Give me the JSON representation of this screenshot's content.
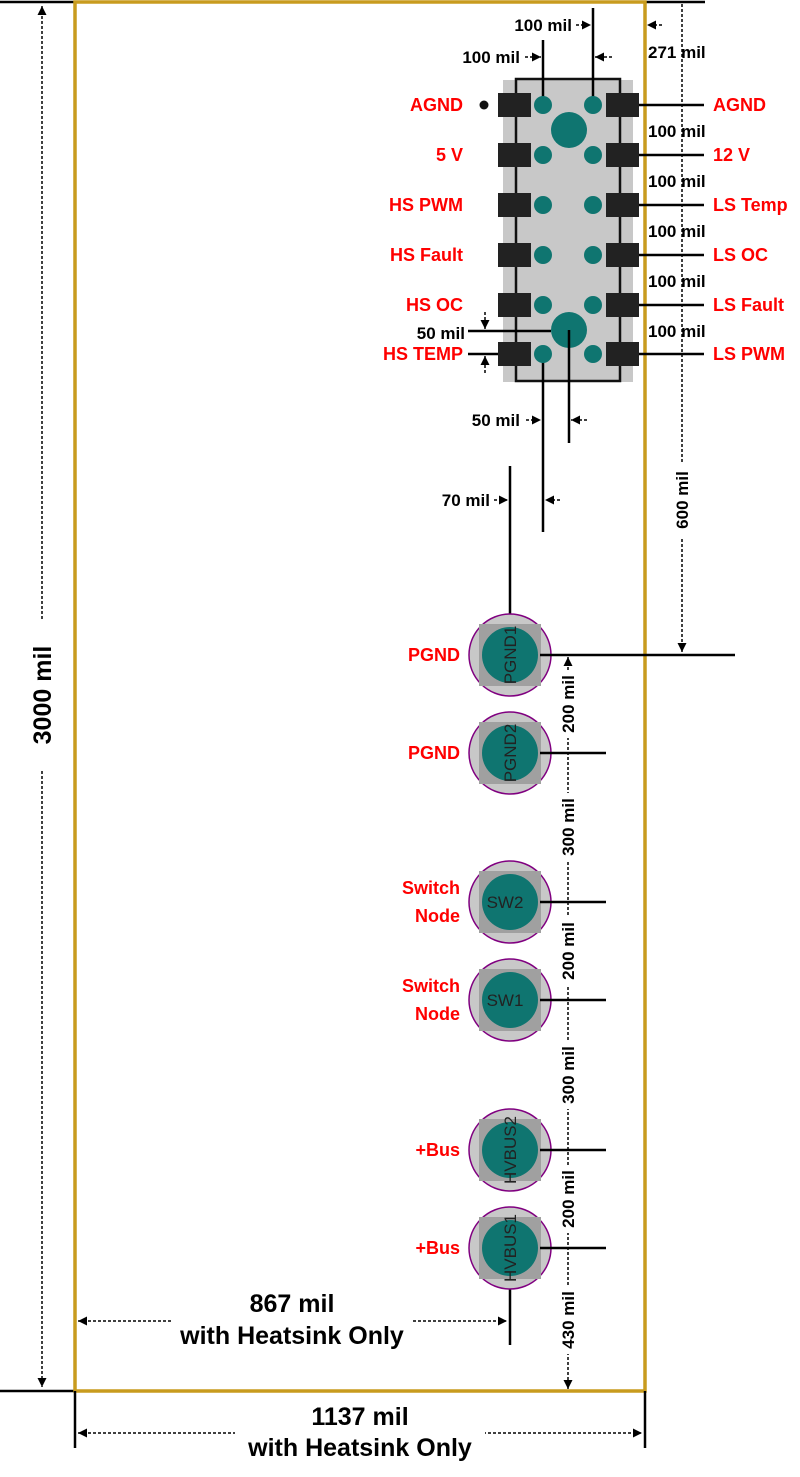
{
  "colors": {
    "board_outline": "#C89B1E",
    "pad": "#222222",
    "via": "#0F7570",
    "label": "#FF0000",
    "ring": "#800080"
  },
  "board": {
    "height_label": "3000 mil",
    "width_label": "1137 mil",
    "width_note": "with Heatsink Only",
    "inner_width_label": "867 mil",
    "inner_width_note": "with Heatsink Only"
  },
  "ic": {
    "left_pins": [
      "AGND",
      "5 V",
      "HS PWM",
      "HS Fault",
      "HS OC",
      "HS TEMP"
    ],
    "right_pins": [
      "AGND",
      "12 V",
      "LS Temp",
      "LS OC",
      "LS Fault",
      "LS PWM"
    ],
    "pitch_labels": [
      "100 mil",
      "100 mil",
      "100 mil",
      "100 mil",
      "100 mil"
    ],
    "top_dim_1": "100 mil",
    "top_dim_2": "100 mil",
    "edge_dim": "271 mil",
    "via_offset_label": "50 mil",
    "bottom_offset_label": "50 mil",
    "pgnd_offset_label": "70 mil",
    "to_pgnd_label": "600 mil"
  },
  "terminals": [
    {
      "ref": "PGND1",
      "label": [
        "PGND"
      ]
    },
    {
      "ref": "PGND2",
      "label": [
        "PGND"
      ]
    },
    {
      "ref": "SW2",
      "label": [
        "Switch",
        "Node"
      ]
    },
    {
      "ref": "SW1",
      "label": [
        "Switch",
        "Node"
      ]
    },
    {
      "ref": "HVBUS2",
      "label": [
        "+Bus"
      ]
    },
    {
      "ref": "HVBUS1",
      "label": [
        "+Bus"
      ]
    }
  ],
  "terminal_spacings": [
    "200 mil",
    "300 mil",
    "200 mil",
    "300 mil",
    "200 mil",
    "430 mil"
  ]
}
